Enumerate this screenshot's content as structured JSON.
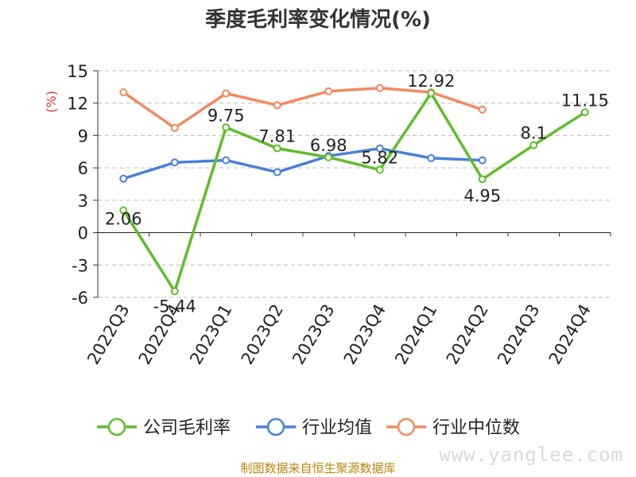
{
  "chart_data": {
    "type": "line",
    "title": "季度毛利率变化情况(%)",
    "ylabel": "(%)",
    "categories": [
      "2022Q3",
      "2022Q4",
      "2023Q1",
      "2023Q2",
      "2023Q3",
      "2023Q4",
      "2024Q1",
      "2024Q2",
      "2024Q3",
      "2024Q4"
    ],
    "ylim": [
      -6,
      15
    ],
    "yticks": [
      -6,
      -3,
      0,
      3,
      6,
      9,
      12,
      15
    ],
    "grid": true,
    "legend_position": "bottom",
    "series": [
      {
        "name": "公司毛利率",
        "color": "#5ebd2b",
        "labeled": true,
        "values": [
          2.06,
          -5.44,
          9.75,
          7.81,
          6.98,
          5.82,
          12.92,
          4.95,
          8.1,
          11.15
        ]
      },
      {
        "name": "行业均值",
        "color": "#4a7fdb",
        "labeled": false,
        "values": [
          5.0,
          6.5,
          6.7,
          5.6,
          7.1,
          7.8,
          6.9,
          6.7,
          null,
          null
        ]
      },
      {
        "name": "行业中位数",
        "color": "#f4895f",
        "labeled": false,
        "values": [
          13.0,
          9.7,
          12.9,
          11.8,
          13.1,
          13.4,
          13.0,
          11.4,
          null,
          null
        ]
      }
    ]
  },
  "footer": {
    "source": "制图数据来自恒生聚源数据库",
    "watermark": "www.yanglee.com"
  }
}
